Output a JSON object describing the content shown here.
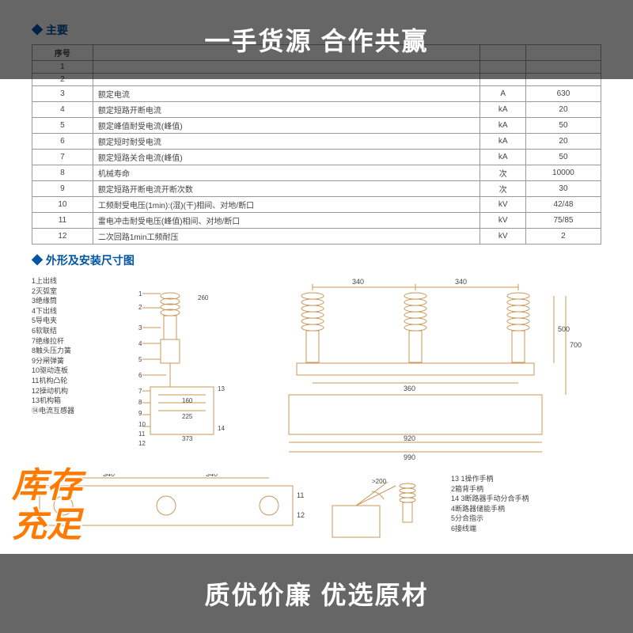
{
  "banners": {
    "top": "一手货源 合作共赢",
    "bottom": "质优价廉 优选原材"
  },
  "stamp": {
    "line1": "库存",
    "line2": "充足",
    "color": "#ff7a00"
  },
  "section_titles": {
    "spec": "主要",
    "dimensions": "外形及安装尺寸图"
  },
  "table": {
    "headers": [
      "序号",
      "",
      "",
      ""
    ],
    "rows": [
      {
        "idx": "1",
        "name": "",
        "unit": "",
        "val": ""
      },
      {
        "idx": "2",
        "name": "",
        "unit": "",
        "val": ""
      },
      {
        "idx": "3",
        "name": "额定电流",
        "unit": "A",
        "val": "630"
      },
      {
        "idx": "4",
        "name": "额定短路开断电流",
        "unit": "kA",
        "val": "20"
      },
      {
        "idx": "5",
        "name": "额定峰值耐受电流(峰值)",
        "unit": "kA",
        "val": "50"
      },
      {
        "idx": "6",
        "name": "额定短时耐受电流",
        "unit": "kA",
        "val": "20"
      },
      {
        "idx": "7",
        "name": "额定短路关合电流(峰值)",
        "unit": "kA",
        "val": "50"
      },
      {
        "idx": "8",
        "name": "机械寿命",
        "unit": "次",
        "val": "10000"
      },
      {
        "idx": "9",
        "name": "额定短路开断电流开断次数",
        "unit": "次",
        "val": "30"
      },
      {
        "idx": "10",
        "name": "工频耐受电压(1min):(湿)(干)相间、对地/断口",
        "unit": "kV",
        "val": "42/48"
      },
      {
        "idx": "11",
        "name": "雷电冲击耐受电压(峰值)相间、对地/断口",
        "unit": "kV",
        "val": "75/85"
      },
      {
        "idx": "12",
        "name": "二次回路1min工频耐压",
        "unit": "kV",
        "val": "2"
      }
    ]
  },
  "legend_left": [
    "1上出线",
    "2灭弧室",
    "3绝缘筒",
    "4下出线",
    "5导电夹",
    "6软联结",
    "7绝缘拉杆",
    "8触头压力簧",
    "9分闸弹簧",
    "10驱动连板",
    "11机构凸轮",
    "12操动机构",
    "13机构箱",
    "⑭电流互感器"
  ],
  "legend_right": [
    "13 1操作手柄",
    "2箱背手柄",
    "14 3断路器手动分合手柄",
    "4断路器储能手柄",
    "5分合指示",
    "6接线端"
  ],
  "dimensions": {
    "top_spacing_1": "340",
    "top_spacing_2": "340",
    "height_500": "500",
    "height_700": "700",
    "width_360": "360",
    "width_920": "920",
    "width_990": "990",
    "side_160": "160",
    "side_225": "225",
    "side_373": "373",
    "side_13": "13",
    "side_14": "14",
    "side_260": "260",
    "bottom_340_1": "340",
    "bottom_340_2": "340",
    "bottom_11": "11",
    "bottom_12": "12",
    "angle_200": ">200"
  },
  "svg_colors": {
    "line": "#c9975a",
    "text": "#444444"
  }
}
